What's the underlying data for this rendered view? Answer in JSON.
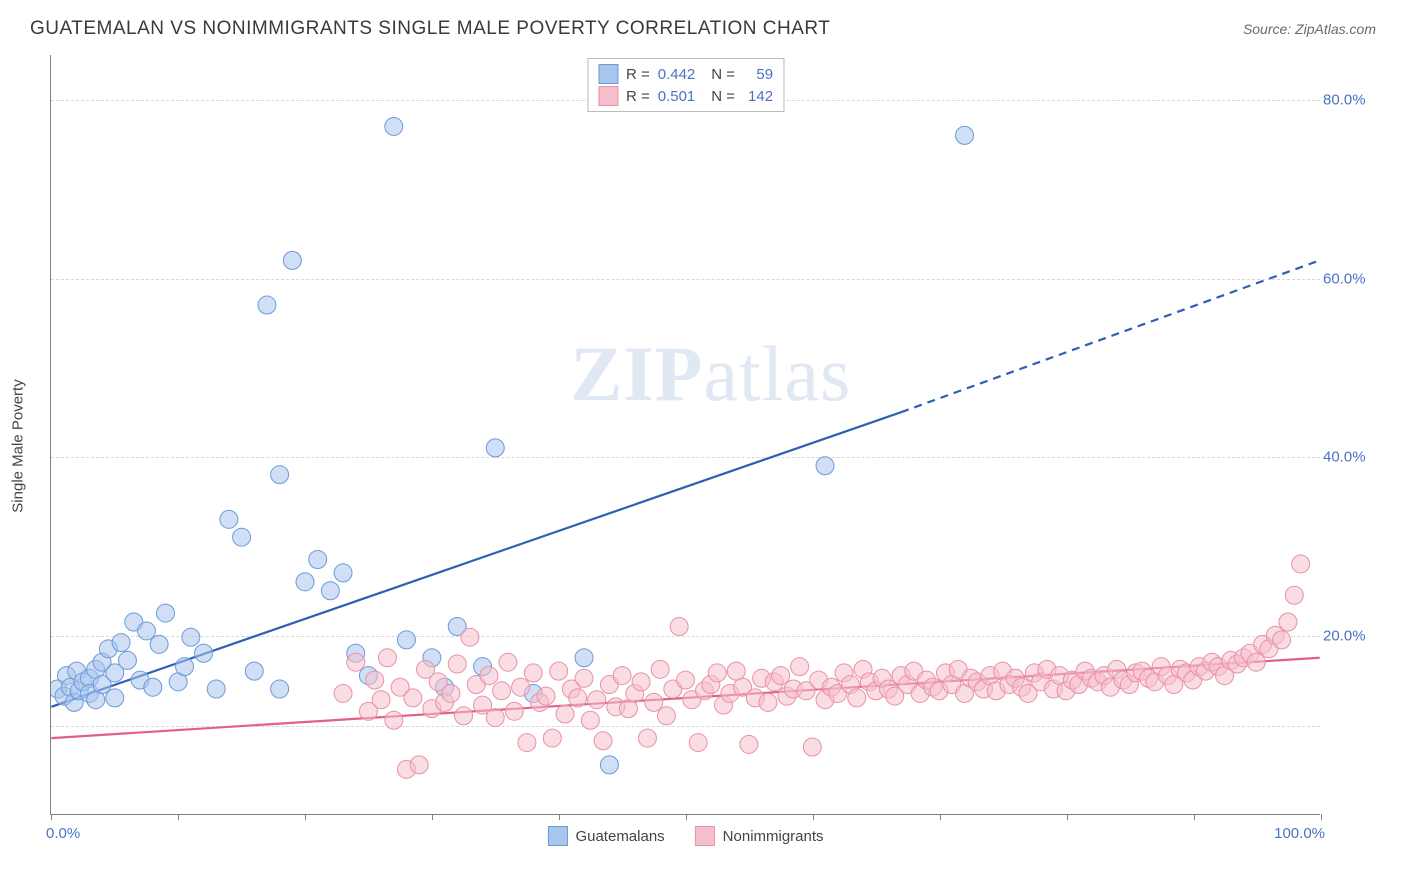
{
  "title": "GUATEMALAN VS NONIMMIGRANTS SINGLE MALE POVERTY CORRELATION CHART",
  "source": "Source: ZipAtlas.com",
  "ylabel": "Single Male Poverty",
  "watermark_bold": "ZIP",
  "watermark_light": "atlas",
  "chart": {
    "type": "scatter",
    "xlim": [
      0,
      100
    ],
    "ylim": [
      0,
      85
    ],
    "x_tick_left": "0.0%",
    "x_tick_right": "100.0%",
    "x_minor_ticks": [
      0,
      10,
      20,
      30,
      40,
      50,
      60,
      70,
      80,
      90,
      100
    ],
    "y_ticks": [
      20,
      40,
      60,
      80
    ],
    "y_tick_labels": [
      "20.0%",
      "40.0%",
      "60.0%",
      "80.0%"
    ],
    "y_gridlines": [
      10,
      20,
      40,
      60,
      80
    ],
    "background_color": "#ffffff",
    "grid_color": "#d8d8d8",
    "axis_color": "#808080",
    "ytick_color": "#4a72c4",
    "marker_radius": 9,
    "marker_opacity": 0.55,
    "series": [
      {
        "name": "Guatemalans",
        "color_fill": "#a9c5ec",
        "color_stroke": "#6a9bd8",
        "R": "0.442",
        "N": "59",
        "trend": {
          "solid": {
            "x1": 0,
            "y1": 12,
            "x2": 67,
            "y2": 45
          },
          "dashed": {
            "x1": 67,
            "y1": 45,
            "x2": 100,
            "y2": 62
          },
          "color": "#2e5fb5",
          "width": 2.2
        },
        "points": [
          [
            0.5,
            14
          ],
          [
            1,
            13.2
          ],
          [
            1.2,
            15.5
          ],
          [
            1.5,
            14.2
          ],
          [
            1.8,
            12.5
          ],
          [
            2,
            16
          ],
          [
            2.2,
            13.8
          ],
          [
            2.5,
            14.8
          ],
          [
            3,
            15.2
          ],
          [
            3,
            13.5
          ],
          [
            3.5,
            16.2
          ],
          [
            3.5,
            12.8
          ],
          [
            4,
            17
          ],
          [
            4,
            14.5
          ],
          [
            4.5,
            18.5
          ],
          [
            5,
            15.8
          ],
          [
            5,
            13
          ],
          [
            5.5,
            19.2
          ],
          [
            6,
            17.2
          ],
          [
            6.5,
            21.5
          ],
          [
            7,
            15
          ],
          [
            7.5,
            20.5
          ],
          [
            8,
            14.2
          ],
          [
            8.5,
            19
          ],
          [
            9,
            22.5
          ],
          [
            10,
            14.8
          ],
          [
            10.5,
            16.5
          ],
          [
            11,
            19.8
          ],
          [
            12,
            18
          ],
          [
            13,
            14
          ],
          [
            14,
            33
          ],
          [
            15,
            31
          ],
          [
            16,
            16
          ],
          [
            17,
            57
          ],
          [
            18,
            38
          ],
          [
            18,
            14
          ],
          [
            19,
            62
          ],
          [
            20,
            26
          ],
          [
            21,
            28.5
          ],
          [
            22,
            25
          ],
          [
            23,
            27
          ],
          [
            24,
            18
          ],
          [
            25,
            15.5
          ],
          [
            27,
            77
          ],
          [
            28,
            19.5
          ],
          [
            30,
            17.5
          ],
          [
            31,
            14.2
          ],
          [
            32,
            21
          ],
          [
            34,
            16.5
          ],
          [
            35,
            41
          ],
          [
            38,
            13.5
          ],
          [
            42,
            17.5
          ],
          [
            44,
            5.5
          ],
          [
            61,
            39
          ],
          [
            72,
            76
          ]
        ]
      },
      {
        "name": "Nonimmigrants",
        "color_fill": "#f5c0cc",
        "color_stroke": "#e891a8",
        "R": "0.501",
        "N": "142",
        "trend": {
          "solid": {
            "x1": 0,
            "y1": 8.5,
            "x2": 100,
            "y2": 17.5
          },
          "color": "#e26088",
          "width": 2.2
        },
        "points": [
          [
            23,
            13.5
          ],
          [
            24,
            17
          ],
          [
            25,
            11.5
          ],
          [
            25.5,
            15
          ],
          [
            26,
            12.8
          ],
          [
            26.5,
            17.5
          ],
          [
            27,
            10.5
          ],
          [
            27.5,
            14.2
          ],
          [
            28,
            5
          ],
          [
            28.5,
            13
          ],
          [
            29,
            5.5
          ],
          [
            29.5,
            16.2
          ],
          [
            30,
            11.8
          ],
          [
            30.5,
            14.8
          ],
          [
            31,
            12.5
          ],
          [
            31.5,
            13.5
          ],
          [
            32,
            16.8
          ],
          [
            32.5,
            11
          ],
          [
            33,
            19.8
          ],
          [
            33.5,
            14.5
          ],
          [
            34,
            12.2
          ],
          [
            34.5,
            15.5
          ],
          [
            35,
            10.8
          ],
          [
            35.5,
            13.8
          ],
          [
            36,
            17
          ],
          [
            36.5,
            11.5
          ],
          [
            37,
            14.2
          ],
          [
            37.5,
            8
          ],
          [
            38,
            15.8
          ],
          [
            38.5,
            12.5
          ],
          [
            39,
            13.2
          ],
          [
            39.5,
            8.5
          ],
          [
            40,
            16
          ],
          [
            40.5,
            11.2
          ],
          [
            41,
            14
          ],
          [
            41.5,
            13
          ],
          [
            42,
            15.2
          ],
          [
            42.5,
            10.5
          ],
          [
            43,
            12.8
          ],
          [
            43.5,
            8.2
          ],
          [
            44,
            14.5
          ],
          [
            44.5,
            12
          ],
          [
            45,
            15.5
          ],
          [
            45.5,
            11.8
          ],
          [
            46,
            13.5
          ],
          [
            46.5,
            14.8
          ],
          [
            47,
            8.5
          ],
          [
            47.5,
            12.5
          ],
          [
            48,
            16.2
          ],
          [
            48.5,
            11
          ],
          [
            49,
            14
          ],
          [
            49.5,
            21
          ],
          [
            50,
            15
          ],
          [
            50.5,
            12.8
          ],
          [
            51,
            8
          ],
          [
            51.5,
            13.8
          ],
          [
            52,
            14.5
          ],
          [
            52.5,
            15.8
          ],
          [
            53,
            12.2
          ],
          [
            53.5,
            13.5
          ],
          [
            54,
            16
          ],
          [
            54.5,
            14.2
          ],
          [
            55,
            7.8
          ],
          [
            55.5,
            13
          ],
          [
            56,
            15.2
          ],
          [
            56.5,
            12.5
          ],
          [
            57,
            14.8
          ],
          [
            57.5,
            15.5
          ],
          [
            58,
            13.2
          ],
          [
            58.5,
            14
          ],
          [
            59,
            16.5
          ],
          [
            59.5,
            13.8
          ],
          [
            60,
            7.5
          ],
          [
            60.5,
            15
          ],
          [
            61,
            12.8
          ],
          [
            61.5,
            14.2
          ],
          [
            62,
            13.5
          ],
          [
            62.5,
            15.8
          ],
          [
            63,
            14.5
          ],
          [
            63.5,
            13
          ],
          [
            64,
            16.2
          ],
          [
            64.5,
            14.8
          ],
          [
            65,
            13.8
          ],
          [
            65.5,
            15.2
          ],
          [
            66,
            14
          ],
          [
            66.5,
            13.2
          ],
          [
            67,
            15.5
          ],
          [
            67.5,
            14.5
          ],
          [
            68,
            16
          ],
          [
            68.5,
            13.5
          ],
          [
            69,
            15
          ],
          [
            69.5,
            14.2
          ],
          [
            70,
            13.8
          ],
          [
            70.5,
            15.8
          ],
          [
            71,
            14.5
          ],
          [
            71.5,
            16.2
          ],
          [
            72,
            13.5
          ],
          [
            72.5,
            15.2
          ],
          [
            73,
            14.8
          ],
          [
            73.5,
            14
          ],
          [
            74,
            15.5
          ],
          [
            74.5,
            13.8
          ],
          [
            75,
            16
          ],
          [
            75.5,
            14.5
          ],
          [
            76,
            15.2
          ],
          [
            76.5,
            14.2
          ],
          [
            77,
            13.5
          ],
          [
            77.5,
            15.8
          ],
          [
            78,
            14.8
          ],
          [
            78.5,
            16.2
          ],
          [
            79,
            14
          ],
          [
            79.5,
            15.5
          ],
          [
            80,
            13.8
          ],
          [
            80.5,
            15
          ],
          [
            81,
            14.5
          ],
          [
            81.5,
            16
          ],
          [
            82,
            15.2
          ],
          [
            82.5,
            14.8
          ],
          [
            83,
            15.5
          ],
          [
            83.5,
            14.2
          ],
          [
            84,
            16.2
          ],
          [
            84.5,
            15
          ],
          [
            85,
            14.5
          ],
          [
            85.5,
            15.8
          ],
          [
            86,
            16
          ],
          [
            86.5,
            15.2
          ],
          [
            87,
            14.8
          ],
          [
            87.5,
            16.5
          ],
          [
            88,
            15.5
          ],
          [
            88.5,
            14.5
          ],
          [
            89,
            16.2
          ],
          [
            89.5,
            15.8
          ],
          [
            90,
            15
          ],
          [
            90.5,
            16.5
          ],
          [
            91,
            16
          ],
          [
            91.5,
            17
          ],
          [
            92,
            16.5
          ],
          [
            92.5,
            15.5
          ],
          [
            93,
            17.2
          ],
          [
            93.5,
            16.8
          ],
          [
            94,
            17.5
          ],
          [
            94.5,
            18
          ],
          [
            95,
            17
          ],
          [
            95.5,
            19
          ],
          [
            96,
            18.5
          ],
          [
            96.5,
            20
          ],
          [
            97,
            19.5
          ],
          [
            97.5,
            21.5
          ],
          [
            98,
            24.5
          ],
          [
            98.5,
            28
          ]
        ]
      }
    ]
  },
  "legend_top": {
    "r_label": "R =",
    "n_label": "N ="
  },
  "legend_bottom": [
    {
      "label": "Guatemalans"
    },
    {
      "label": "Nonimmigrants"
    }
  ]
}
